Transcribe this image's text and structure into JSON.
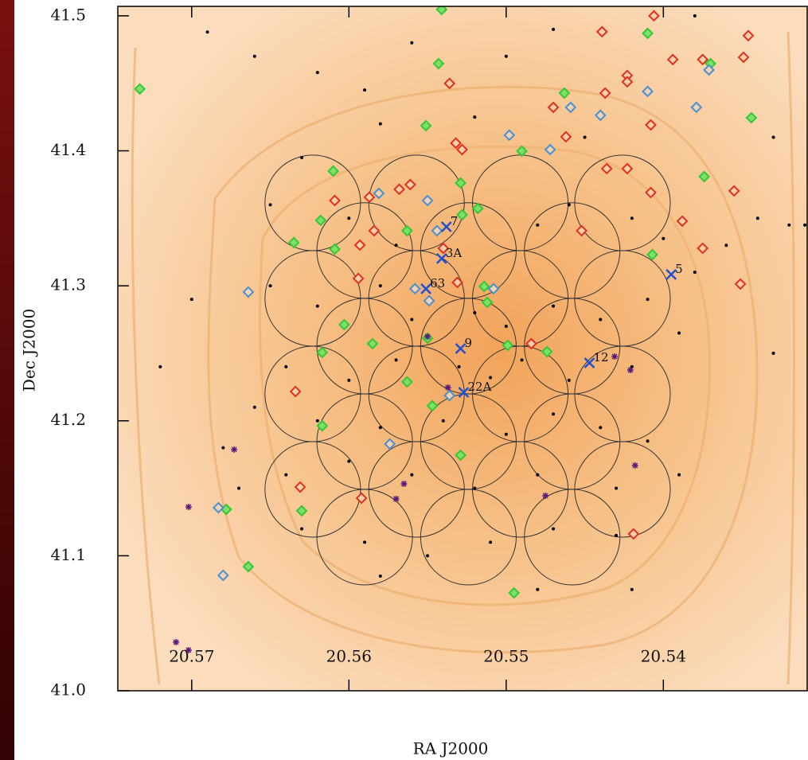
{
  "chart_data": {
    "type": "scatter",
    "x_label": "RA J2000",
    "y_label": "Dec J2000",
    "xlim": [
      20.5747,
      20.5308
    ],
    "ylim": [
      41.0,
      41.507
    ],
    "xticks": [
      20.57,
      20.56,
      20.55,
      20.54
    ],
    "yticks": [
      {
        "value": 41,
        "label": "41.0"
      },
      41.1,
      41.2,
      41.3,
      41.4,
      41.5
    ],
    "series": [
      {
        "marker": "circle",
        "color": "#333333",
        "radius": 0.0354,
        "x": [
          20.5623,
          20.5557,
          20.5491,
          20.5426,
          20.559,
          20.5524,
          20.5458,
          20.5623,
          20.5557,
          20.5491,
          20.5426,
          20.559,
          20.5524,
          20.5458,
          20.5623,
          20.5557,
          20.5491,
          20.5426,
          20.559,
          20.5524,
          20.5458,
          20.5623,
          20.5557,
          20.5491,
          20.5426,
          20.559,
          20.5524,
          20.5458
        ],
        "values": [
          41.3614,
          41.3614,
          41.3614,
          41.3614,
          41.3261,
          41.3261,
          41.3261,
          41.2907,
          41.2907,
          41.2907,
          41.2907,
          41.2553,
          41.2553,
          41.2553,
          41.2199,
          41.2199,
          41.2199,
          41.2199,
          41.1846,
          41.1846,
          41.1846,
          41.1492,
          41.1492,
          41.1492,
          41.1492,
          41.1138,
          41.1138,
          41.1138
        ]
      },
      {
        "marker": "dot",
        "color": "#000000",
        "x": [
          20.569,
          20.566,
          20.562,
          20.559,
          20.556,
          20.55,
          20.547,
          20.538,
          20.533,
          20.545,
          20.552,
          20.558,
          20.563,
          20.565,
          20.56,
          20.557,
          20.548,
          20.546,
          20.542,
          20.54,
          20.538,
          20.536,
          20.532,
          20.565,
          20.562,
          20.558,
          20.556,
          20.552,
          20.55,
          20.547,
          20.544,
          20.541,
          20.539,
          20.542,
          20.546,
          20.549,
          20.551,
          20.553,
          20.557,
          20.56,
          20.564,
          20.566,
          20.562,
          20.558,
          20.554,
          20.55,
          20.547,
          20.544,
          20.541,
          20.539,
          20.543,
          20.548,
          20.552,
          20.556,
          20.56,
          20.564,
          20.567,
          20.563,
          20.559,
          20.555,
          20.551,
          20.547,
          20.543,
          20.558,
          20.548,
          20.542,
          20.57,
          20.572,
          20.568,
          20.534,
          20.531,
          20.533
        ],
        "values": [
          41.488,
          41.47,
          41.458,
          41.445,
          41.48,
          41.47,
          41.49,
          41.5,
          41.41,
          41.41,
          41.425,
          41.42,
          41.395,
          41.36,
          41.35,
          41.33,
          41.345,
          41.36,
          41.35,
          41.335,
          41.31,
          41.33,
          41.345,
          41.3,
          41.285,
          41.3,
          41.275,
          41.28,
          41.27,
          41.285,
          41.275,
          41.29,
          41.265,
          41.24,
          41.23,
          41.245,
          41.232,
          41.24,
          41.245,
          41.23,
          41.24,
          41.21,
          41.2,
          41.195,
          41.2,
          41.19,
          41.205,
          41.195,
          41.185,
          41.16,
          41.15,
          41.16,
          41.15,
          41.16,
          41.17,
          41.16,
          41.15,
          41.12,
          41.11,
          41.1,
          41.11,
          41.12,
          41.115,
          41.085,
          41.075,
          41.075,
          41.29,
          41.24,
          41.18,
          41.35,
          41.345,
          41.25
        ]
      },
      {
        "marker": "diamond",
        "color": "#e03020",
        "fill": "#f6d0a8",
        "x": [
          20.5439,
          20.5406,
          20.5346,
          20.5349,
          20.5536,
          20.5423,
          20.5423,
          20.5394,
          20.5437,
          20.547,
          20.5462,
          20.5532,
          20.5528,
          20.5408,
          20.5436,
          20.5423,
          20.5408,
          20.5388,
          20.5355,
          20.5375,
          20.5351,
          20.5561,
          20.5568,
          20.5587,
          20.5609,
          20.5584,
          20.5593,
          20.5594,
          20.554,
          20.5531,
          20.5484,
          20.5634,
          20.5631,
          20.5592,
          20.5419,
          20.5452,
          20.5375
        ],
        "values": [
          41.4882,
          41.5,
          41.4853,
          41.4693,
          41.4499,
          41.4558,
          41.4511,
          41.4676,
          41.4428,
          41.4322,
          41.4104,
          41.4057,
          41.4009,
          41.4192,
          41.3868,
          41.3868,
          41.3691,
          41.3479,
          41.3703,
          41.3278,
          41.3013,
          41.375,
          41.3715,
          41.3656,
          41.3632,
          41.3408,
          41.3302,
          41.3054,
          41.3278,
          41.3025,
          41.2571,
          41.2217,
          41.1509,
          41.1427,
          41.1162,
          41.3408,
          41.4676
        ]
      },
      {
        "marker": "diamond",
        "color": "#35c835",
        "fill": "#7ee06a",
        "x": [
          20.5733,
          20.5543,
          20.5541,
          20.541,
          20.5463,
          20.537,
          20.5344,
          20.5551,
          20.549,
          20.561,
          20.5529,
          20.5518,
          20.5374,
          20.5618,
          20.5635,
          20.5609,
          20.5563,
          20.5407,
          20.5528,
          20.5514,
          20.5512,
          20.5603,
          20.5585,
          20.5617,
          20.555,
          20.5499,
          20.5474,
          20.5563,
          20.5547,
          20.5617,
          20.5529,
          20.563,
          20.5678,
          20.5664,
          20.5495
        ],
        "values": [
          41.4458,
          41.4646,
          41.5047,
          41.487,
          41.4428,
          41.4646,
          41.4245,
          41.4186,
          41.3998,
          41.385,
          41.3762,
          41.3573,
          41.3809,
          41.3485,
          41.332,
          41.3272,
          41.3408,
          41.3231,
          41.3526,
          41.2995,
          41.2877,
          41.2712,
          41.2571,
          41.2506,
          41.2612,
          41.2559,
          41.2512,
          41.2288,
          41.2111,
          41.1963,
          41.1745,
          41.1333,
          41.1344,
          41.092,
          41.0725
        ]
      },
      {
        "marker": "diamond",
        "color": "#4a90d0",
        "fill": "#f2d2b0",
        "x": [
          20.541,
          20.5459,
          20.5379,
          20.5371,
          20.5498,
          20.5472,
          20.544,
          20.5581,
          20.555,
          20.5544,
          20.5664,
          20.5558,
          20.5549,
          20.5508,
          20.5574,
          20.5683,
          20.568,
          20.5536
        ],
        "values": [
          41.444,
          41.4322,
          41.4322,
          41.4599,
          41.4116,
          41.4009,
          41.4263,
          41.3685,
          41.3632,
          41.3408,
          41.2954,
          41.2978,
          41.2889,
          41.2978,
          41.1828,
          41.1356,
          41.0855,
          41.2187
        ]
      },
      {
        "marker": "star",
        "color": "#5a1a7a",
        "x": [
          20.5673,
          20.5702,
          20.571,
          20.5702,
          20.557,
          20.5475,
          20.5431,
          20.5421,
          20.5418,
          20.555,
          20.5537,
          20.5565
        ],
        "values": [
          41.1787,
          41.1362,
          41.036,
          41.0301,
          41.1421,
          41.1445,
          41.2476,
          41.2376,
          41.1669,
          41.2624,
          41.2247,
          41.1533
        ]
      },
      {
        "marker": "x",
        "color": "#2050d0",
        "labels": [
          "5",
          "63",
          "9",
          "12",
          "22A",
          "3A",
          "7"
        ],
        "x": [
          20.5395,
          20.5551,
          20.5529,
          20.5447,
          20.5527,
          20.5541,
          20.5538
        ],
        "values": [
          41.3084,
          41.2978,
          41.2535,
          41.2429,
          41.2211,
          41.3202,
          41.3437
        ]
      }
    ]
  }
}
